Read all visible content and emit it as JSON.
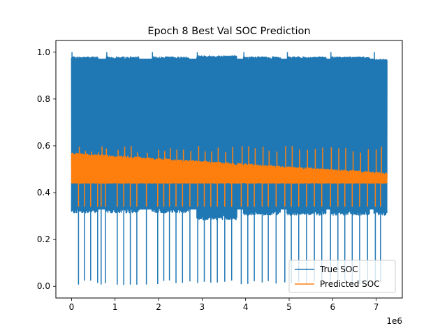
{
  "chart_data": {
    "type": "line",
    "title": "Epoch 8 Best Val SOC Prediction",
    "xlabel": "",
    "ylabel": "",
    "x_offset_label": "1e6",
    "xlim": [
      -0.36,
      7.6
    ],
    "ylim": [
      -0.05,
      1.05
    ],
    "x_ticks": [
      0,
      1,
      2,
      3,
      4,
      5,
      6,
      7
    ],
    "x_tick_labels": [
      "0",
      "1",
      "2",
      "3",
      "4",
      "5",
      "6",
      "7"
    ],
    "y_ticks": [
      0.0,
      0.2,
      0.4,
      0.6,
      0.8,
      1.0
    ],
    "y_tick_labels": [
      "0.0",
      "0.2",
      "0.4",
      "0.6",
      "0.8",
      "1.0"
    ],
    "grid": false,
    "legend_position": "lower-right",
    "series": [
      {
        "name": "True SOC",
        "color": "#1f77b4",
        "style": "dense-oscillation",
        "x_range": [
          0,
          7.25
        ],
        "value_range": [
          0.0,
          1.0
        ],
        "segments": [
          {
            "x": [
              0.0,
              0.62
            ],
            "top": 0.975,
            "bottom": 0.32
          },
          {
            "x": [
              0.8,
              1.55
            ],
            "top": 0.975,
            "bottom": 0.32
          },
          {
            "x": [
              1.85,
              2.7
            ],
            "top": 0.975,
            "bottom": 0.32
          },
          {
            "x": [
              2.88,
              3.8
            ],
            "top": 0.98,
            "bottom": 0.29
          },
          {
            "x": [
              3.95,
              4.8
            ],
            "top": 0.975,
            "bottom": 0.31
          },
          {
            "x": [
              4.95,
              5.85
            ],
            "top": 0.975,
            "bottom": 0.31
          },
          {
            "x": [
              5.95,
              6.85
            ],
            "top": 0.975,
            "bottom": 0.31
          },
          {
            "x": [
              6.95,
              7.25
            ],
            "top": 0.965,
            "bottom": 0.31
          }
        ],
        "spikes_to_zero": [
          0.16,
          0.3,
          0.44,
          0.6,
          0.68,
          0.78,
          1.05,
          1.2,
          1.35,
          1.5,
          1.72,
          1.98,
          2.12,
          2.25,
          2.4,
          2.55,
          2.72,
          2.9,
          3.05,
          3.2,
          3.35,
          3.52,
          3.68,
          3.9,
          4.05,
          4.2,
          4.38,
          4.52,
          4.7,
          4.9,
          5.05,
          5.22,
          5.4,
          5.58,
          5.75,
          5.95,
          6.12,
          6.28,
          6.45,
          6.62,
          6.8,
          6.98,
          7.1
        ]
      },
      {
        "name": "Predicted SOC",
        "color": "#ff7f0e",
        "style": "dense-oscillation",
        "x_range": [
          0,
          7.25
        ],
        "top_start": 0.57,
        "top_end": 0.485,
        "bottom": 0.44,
        "spike_low": 0.34,
        "spike_high": 0.6
      }
    ]
  }
}
